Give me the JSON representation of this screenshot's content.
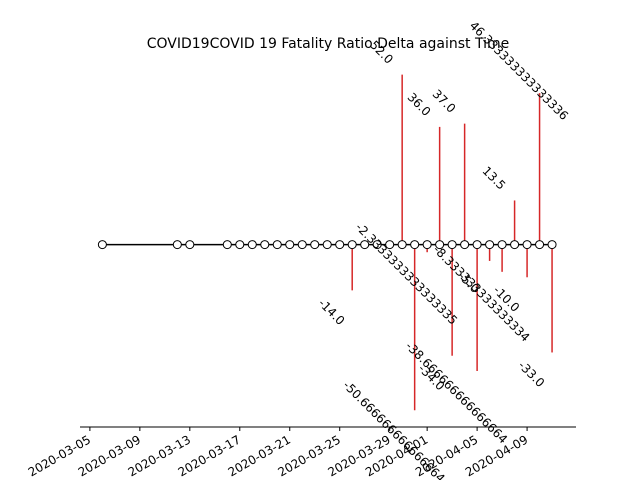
{
  "chart_data": {
    "type": "stem",
    "title": "COVID19COVID 19 Fatality Ratio Delta against Time",
    "x": [
      "2020-03-06",
      "2020-03-12",
      "2020-03-13",
      "2020-03-16",
      "2020-03-17",
      "2020-03-18",
      "2020-03-19",
      "2020-03-20",
      "2020-03-21",
      "2020-03-22",
      "2020-03-23",
      "2020-03-24",
      "2020-03-25",
      "2020-03-26",
      "2020-03-27",
      "2020-03-28",
      "2020-03-29",
      "2020-03-30",
      "2020-03-31",
      "2020-04-01",
      "2020-04-02",
      "2020-04-03",
      "2020-04-04",
      "2020-04-05",
      "2020-04-06",
      "2020-04-07",
      "2020-04-08",
      "2020-04-09",
      "2020-04-10",
      "2020-04-11"
    ],
    "values": [
      0,
      0,
      0,
      0,
      0,
      0,
      0,
      0,
      0,
      0,
      0,
      0,
      0,
      -14,
      0,
      0,
      0,
      52,
      -50.666666666666664,
      -2.3333333333333335,
      36,
      -34,
      37,
      -38.666666666666664,
      -5,
      -8.333333333333334,
      13.5,
      -10,
      46.333333333333336,
      -33
    ],
    "value_labels": [
      null,
      null,
      null,
      null,
      null,
      null,
      null,
      null,
      null,
      null,
      null,
      null,
      null,
      "-14.0",
      null,
      null,
      null,
      "52.0",
      "-50.666666666666664",
      "-2.3333333333333335",
      "36.0",
      "-34.0",
      "37.0",
      "-38.666666666666664",
      "-5.0",
      "-8.333333333333334",
      "13.5",
      "-10.0",
      "46.333333333333336",
      "-33.0"
    ],
    "stem_color": "#d62728",
    "xlim": [
      "2020-03-04T05:00",
      "2020-04-12T22:00"
    ],
    "ylim": [
      -55.8,
      57.2
    ],
    "xticks": [
      "2020-03-05",
      "2020-03-09",
      "2020-03-13",
      "2020-03-17",
      "2020-03-21",
      "2020-03-25",
      "2020-03-29",
      "2020-04-01",
      "2020-04-05",
      "2020-04-09"
    ]
  }
}
